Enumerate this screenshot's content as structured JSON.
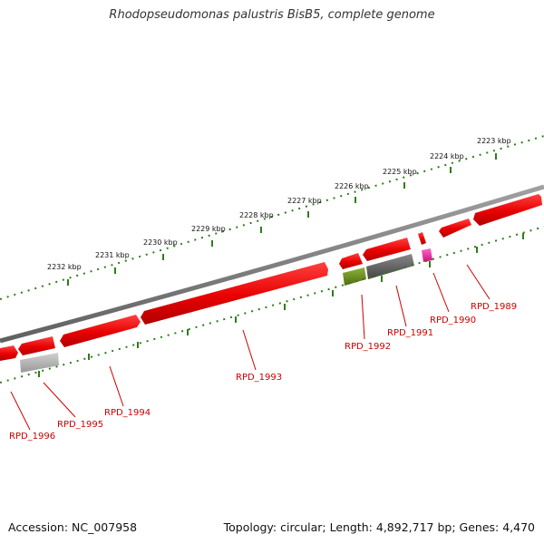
{
  "title": "Rhodopseudomonas palustris BisB5, complete genome",
  "footer": {
    "accession": "Accession: NC_007958",
    "topology": "Topology: circular; Length: 4,892,717 bp; Genes: 4,470"
  },
  "scale_labels": [
    "2223 kbp",
    "2224 kbp",
    "2225 kbp",
    "2226 kbp",
    "2227 kbp",
    "2228 kbp",
    "2229 kbp",
    "2230 kbp",
    "2231 kbp",
    "2232 kbp"
  ],
  "gene_labels": [
    "RPD_1989",
    "RPD_1990",
    "RPD_1991",
    "RPD_1992",
    "RPD_1993",
    "RPD_1994",
    "RPD_1995",
    "RPD_1996"
  ],
  "colors": {
    "backbone": "#808080",
    "scale_ticks": "#2e7d1a",
    "gene_cds": "#ee1111",
    "gene_label": "#cc0000",
    "gene_olive": "#6b8e23",
    "gene_gray": "#555555",
    "gene_light_gray": "#b0b0b0",
    "gene_pink": "#ee3399"
  }
}
